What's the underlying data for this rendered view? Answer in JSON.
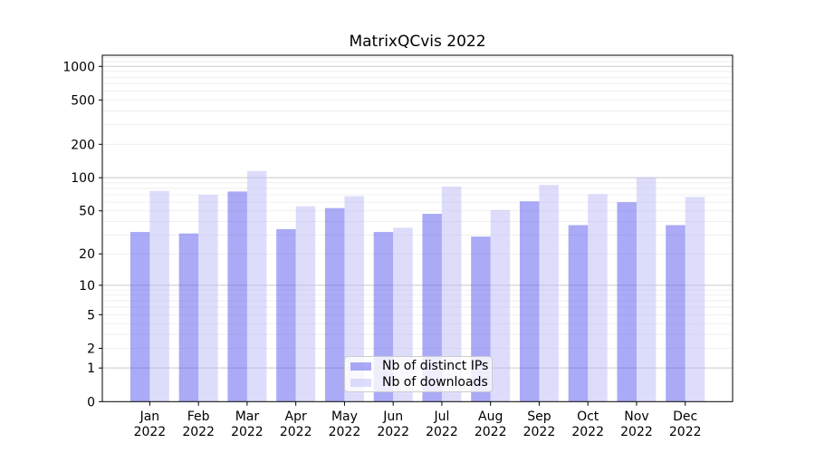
{
  "title": "MatrixQCvis 2022",
  "chart_data": {
    "type": "bar",
    "title": "MatrixQCvis 2022",
    "categories": [
      "Jan",
      "Feb",
      "Mar",
      "Apr",
      "May",
      "Jun",
      "Jul",
      "Aug",
      "Sep",
      "Oct",
      "Nov",
      "Dec"
    ],
    "category_year": "2022",
    "series": [
      {
        "name": "Nb of distinct IPs",
        "color": "rgba(85,85,238,0.5)",
        "values": [
          32,
          31,
          75,
          34,
          53,
          32,
          47,
          29,
          61,
          37,
          60,
          37
        ]
      },
      {
        "name": "Nb of downloads",
        "color": "rgba(187,187,247,0.5)",
        "values": [
          76,
          70,
          115,
          55,
          68,
          35,
          83,
          51,
          86,
          71,
          101,
          67
        ]
      }
    ],
    "xlabel": "",
    "ylabel": "",
    "yscale": "symlog (y proportional to ln(1+value))",
    "y_ticks": [
      1000,
      500,
      200,
      100,
      50,
      20,
      10,
      5,
      2,
      1,
      0
    ],
    "ylim": [
      0,
      1260
    ],
    "grid": "horizontal, minor light lines at 2-9 per decade, major lines at 1/10/100/1000",
    "legend_position": "inside lower center"
  },
  "legend": {
    "items": [
      "Nb of distinct IPs",
      "Nb of downloads"
    ]
  },
  "colors": {
    "ips_bar": "rgba(85,85,238,0.5)",
    "downloads_bar": "rgba(187,187,247,0.5)",
    "major_grid": "#c9c9c9",
    "minor_grid": "#ebebeb",
    "axis_spine": "#000000",
    "background": "#ffffff"
  }
}
